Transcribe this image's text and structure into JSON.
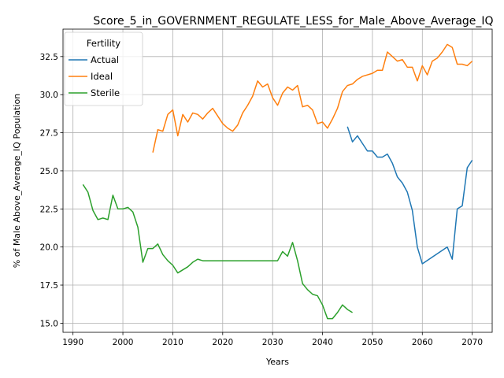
{
  "chart_data": {
    "type": "line",
    "title": "Score_5_in_GOVERNMENT_REGULATE_LESS_for_Male_Above_Average_IQ",
    "xlabel": "Years",
    "ylabel": "% of Male Above_Average_IQ Population",
    "xlim": [
      1988,
      2074
    ],
    "ylim": [
      14.4,
      34.3
    ],
    "xticks": [
      1990,
      2000,
      2010,
      2020,
      2030,
      2040,
      2050,
      2060,
      2070
    ],
    "xtick_labels": [
      "1990",
      "2000",
      "2010",
      "2020",
      "2030",
      "2040",
      "2050",
      "2060",
      "2070"
    ],
    "yticks": [
      15.0,
      17.5,
      20.0,
      22.5,
      25.0,
      27.5,
      30.0,
      32.5
    ],
    "ytick_labels": [
      "15.0",
      "17.5",
      "20.0",
      "22.5",
      "25.0",
      "27.5",
      "30.0",
      "32.5"
    ],
    "grid": true,
    "legend": {
      "title": "Fertility",
      "placement": "upper-left"
    },
    "series": [
      {
        "name": "Actual",
        "color": "#1f77b4",
        "x": [
          2045,
          2046,
          2047,
          2048,
          2049,
          2050,
          2051,
          2052,
          2053,
          2054,
          2055,
          2056,
          2057,
          2058,
          2059,
          2060,
          2065,
          2066,
          2067,
          2068,
          2069,
          2070
        ],
        "y": [
          27.9,
          26.9,
          27.3,
          26.8,
          26.3,
          26.3,
          25.9,
          25.9,
          26.1,
          25.5,
          24.6,
          24.2,
          23.6,
          22.4,
          20.0,
          18.9,
          20.0,
          19.2,
          22.5,
          22.7,
          25.2,
          25.7
        ]
      },
      {
        "name": "Ideal",
        "color": "#ff7f0e",
        "x": [
          2006,
          2007,
          2008,
          2009,
          2010,
          2011,
          2012,
          2013,
          2014,
          2015,
          2016,
          2017,
          2018,
          2019,
          2020,
          2021,
          2022,
          2023,
          2024,
          2025,
          2026,
          2027,
          2028,
          2029,
          2030,
          2031,
          2032,
          2033,
          2034,
          2035,
          2036,
          2037,
          2038,
          2039,
          2040,
          2041,
          2042,
          2043,
          2044,
          2045,
          2046,
          2047,
          2048,
          2049,
          2050,
          2051,
          2052,
          2053,
          2054,
          2055,
          2056,
          2057,
          2058,
          2059,
          2060,
          2061,
          2062,
          2063,
          2064,
          2065,
          2066,
          2067,
          2068,
          2069,
          2070
        ],
        "y": [
          26.2,
          27.7,
          27.6,
          28.7,
          29.0,
          27.3,
          28.7,
          28.2,
          28.8,
          28.7,
          28.4,
          28.8,
          29.1,
          28.6,
          28.1,
          27.8,
          27.6,
          28.0,
          28.8,
          29.3,
          29.9,
          30.9,
          30.5,
          30.7,
          29.8,
          29.3,
          30.1,
          30.5,
          30.3,
          30.6,
          29.2,
          29.3,
          29.0,
          28.1,
          28.2,
          27.8,
          28.4,
          29.1,
          30.2,
          30.6,
          30.7,
          31.0,
          31.2,
          31.3,
          31.4,
          31.6,
          31.6,
          32.8,
          32.5,
          32.2,
          32.3,
          31.8,
          31.8,
          30.9,
          31.9,
          31.3,
          32.2,
          32.4,
          32.8,
          33.3,
          33.1,
          32.0,
          32.0,
          31.9,
          32.2
        ]
      },
      {
        "name": "Sterile",
        "color": "#2ca02c",
        "x": [
          1992,
          1993,
          1994,
          1995,
          1996,
          1997,
          1998,
          1999,
          2000,
          2001,
          2002,
          2003,
          2004,
          2005,
          2006,
          2007,
          2008,
          2009,
          2010,
          2011,
          2012,
          2013,
          2014,
          2015,
          2016,
          2017,
          2018,
          2019,
          2020,
          2021,
          2022,
          2023,
          2024,
          2025,
          2026,
          2027,
          2028,
          2029,
          2030,
          2031,
          2032,
          2033,
          2034,
          2035,
          2036,
          2037,
          2038,
          2039,
          2040,
          2041,
          2042,
          2043,
          2044,
          2045,
          2046
        ],
        "y": [
          24.1,
          23.6,
          22.4,
          21.8,
          21.9,
          21.8,
          23.4,
          22.5,
          22.5,
          22.6,
          22.3,
          21.3,
          19.0,
          19.9,
          19.9,
          20.2,
          19.5,
          19.1,
          18.8,
          18.3,
          18.5,
          18.7,
          19.0,
          19.2,
          19.1,
          19.1,
          19.1,
          19.1,
          19.1,
          19.1,
          19.1,
          19.1,
          19.1,
          19.1,
          19.1,
          19.1,
          19.1,
          19.1,
          19.1,
          19.1,
          19.7,
          19.4,
          20.3,
          19.1,
          17.6,
          17.2,
          16.9,
          16.8,
          16.2,
          15.3,
          15.3,
          15.7,
          16.2,
          15.9,
          15.7
        ]
      }
    ]
  }
}
